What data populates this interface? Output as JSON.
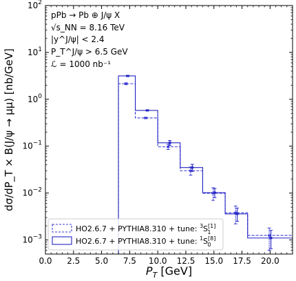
{
  "chart_data": {
    "type": "step",
    "xlabel_main": "P",
    "xlabel_sub": "T",
    "xlabel_unit": " [GeV]",
    "ylabel": "dσ/dP_T × B(J/ψ → μμ) [nb/GeV]",
    "xlim": [
      0.0,
      22.0
    ],
    "ylim": [
      0.0005,
      100
    ],
    "yscale": "log",
    "xticks": [
      "0.0",
      "2.5",
      "5.0",
      "7.5",
      "10.0",
      "12.5",
      "15.0",
      "17.5",
      "20.0"
    ],
    "xtick_values": [
      0,
      2.5,
      5,
      7.5,
      10,
      12.5,
      15,
      17.5,
      20
    ],
    "yticks": [
      {
        "value": 100,
        "exp": "2"
      },
      {
        "value": 10,
        "exp": "1"
      },
      {
        "value": 1,
        "exp": "0"
      },
      {
        "value": 0.1,
        "exp": "−1"
      },
      {
        "value": 0.01,
        "exp": "−2"
      },
      {
        "value": 0.001,
        "exp": "−3"
      }
    ],
    "tick_base": "10",
    "bin_edges": [
      6.5,
      8.0,
      10.0,
      12.0,
      14.0,
      16.0,
      18.0,
      22.0
    ],
    "series": [
      {
        "name": "HO2.6.7 + PYTHIA8.310 + tune: 3S1[1]",
        "style": "dashed",
        "color": "#3b3bd6",
        "values": [
          2.15,
          0.4,
          0.097,
          0.03,
          0.0099,
          0.0038,
          0.00125
        ],
        "errors_low": [
          2.05,
          0.385,
          0.085,
          0.024,
          0.007,
          0.0022,
          0.0006
        ],
        "errors_high": [
          2.25,
          0.415,
          0.11,
          0.036,
          0.013,
          0.0053,
          0.0018
        ]
      },
      {
        "name": "HO2.6.7 + PYTHIA8.310 + tune: 1S0[8]",
        "style": "solid",
        "color": "#2424c4",
        "values": [
          3.15,
          0.58,
          0.118,
          0.035,
          0.0102,
          0.0036,
          0.0011
        ],
        "errors_low": [
          3.05,
          0.565,
          0.104,
          0.029,
          0.008,
          0.0025,
          0.00065
        ],
        "errors_high": [
          3.25,
          0.595,
          0.132,
          0.041,
          0.0125,
          0.0048,
          0.0016
        ]
      }
    ],
    "marker_x": [
      7.25,
      9.0,
      11.0,
      13.0,
      15.0,
      17.0,
      20.0
    ],
    "annotations": [
      "pPb → Pb ⊕ J/ψ X",
      "√s_NN = 8.16 TeV",
      "|y^J/ψ| < 2.4",
      "P_T^J/ψ > 6.5 GeV",
      "ℒ = 1000 nb⁻¹"
    ],
    "legend": {
      "position": "lower left",
      "entries": [
        {
          "text": "HO2.6.7 + PYTHIA8.310 + tune: ",
          "state": "S",
          "presup": "3",
          "sup": "[1]",
          "sub": "1"
        },
        {
          "text": "HO2.6.7 + PYTHIA8.310 + tune: ",
          "state": "S",
          "presup": "1",
          "sup": "[8]",
          "sub": "0"
        }
      ]
    },
    "grid": false
  }
}
